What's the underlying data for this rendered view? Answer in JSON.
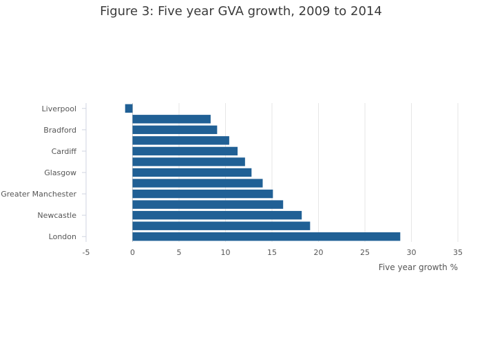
{
  "chart_data": {
    "type": "bar",
    "orientation": "horizontal",
    "title": "Figure 3: Five year GVA growth, 2009 to 2014",
    "xlabel": "Five year growth %",
    "ylabel": "",
    "xlim": [
      -5,
      35
    ],
    "x_ticks": [
      "-5",
      "0",
      "5",
      "10",
      "15",
      "20",
      "25",
      "30",
      "35"
    ],
    "categories": [
      "Liverpool",
      "",
      "Bradford",
      "",
      "Cardiff",
      "",
      "Glasgow",
      "",
      "Greater Manchester",
      "",
      "Newcastle",
      "",
      "London"
    ],
    "values": [
      -0.8,
      8.4,
      9.1,
      10.4,
      11.3,
      12.1,
      12.8,
      14.0,
      15.1,
      16.2,
      18.2,
      19.1,
      28.8
    ],
    "bar_color": "#206095",
    "grid": true,
    "legend": "none"
  }
}
